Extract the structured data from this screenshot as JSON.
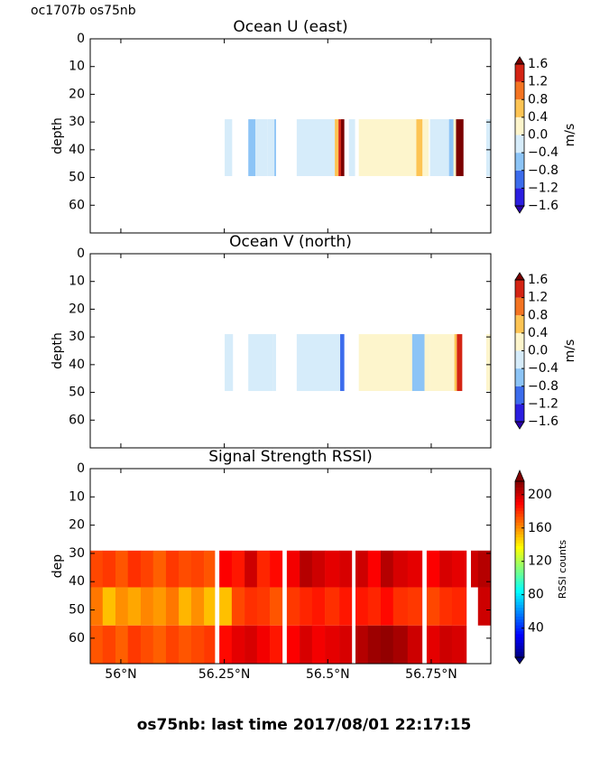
{
  "header": "oc1707b os75nb",
  "footer": "os75nb: last time 2017/08/01 22:17:15",
  "chart_data": [
    {
      "type": "contourf",
      "title": "Ocean U (east)",
      "ylabel": "depth",
      "colorbar_label": "m/s",
      "xlim": [
        55.926,
        56.894
      ],
      "ylim": [
        70,
        0
      ],
      "yticks": [
        0,
        10,
        20,
        30,
        40,
        50,
        60
      ],
      "xticks": [
        {
          "value": 56,
          "label": "56°N"
        },
        {
          "value": 56.25,
          "label": "56.25°N"
        },
        {
          "value": 56.5,
          "label": "56.5°N"
        },
        {
          "value": 56.75,
          "label": "56.75°N"
        }
      ],
      "show_xtick_labels": false,
      "y_edges": [
        29,
        49.5
      ],
      "x0": [
        56.251,
        56.308,
        56.325,
        56.354,
        56.371,
        56.425,
        56.517,
        56.526,
        56.532,
        56.551,
        56.575,
        56.714,
        56.729,
        56.747,
        56.793,
        56.804,
        56.81,
        56.883
      ],
      "x1": [
        56.269,
        56.325,
        56.354,
        56.371,
        56.375,
        56.517,
        56.526,
        56.532,
        56.54,
        56.566,
        56.714,
        56.729,
        56.744,
        56.793,
        56.804,
        56.81,
        56.828,
        56.894
      ],
      "values": [
        -0.2,
        -0.6,
        -0.2,
        -0.2,
        -0.6,
        -0.2,
        0.6,
        1.4,
        1.7,
        -0.2,
        0.2,
        0.5,
        0.2,
        -0.2,
        -0.6,
        0.2,
        1.7,
        -0.2
      ],
      "cticks": [
        {
          "value": -1.6,
          "label": "−1.6"
        },
        {
          "value": -1.2,
          "label": "−1.2"
        },
        {
          "value": -0.8,
          "label": "−0.8"
        },
        {
          "value": -0.4,
          "label": "−0.4"
        },
        {
          "value": 0,
          "label": "0.0"
        },
        0.4,
        0.8,
        1.2,
        1.6
      ],
      "colors": [
        "#2b1ee0",
        "#3c6cec",
        "#8cc4f6",
        "#d6ecfa",
        "#fdf5cc",
        "#fdc454",
        "#f47422",
        "#d42414"
      ],
      "under_color": "#2a00a8",
      "over_color": "#7a0000"
    },
    {
      "type": "contourf",
      "title": "Ocean V (north)",
      "ylabel": "depth",
      "colorbar_label": "m/s",
      "xlim": [
        55.926,
        56.894
      ],
      "ylim": [
        70,
        0
      ],
      "yticks": [
        0,
        10,
        20,
        30,
        40,
        50,
        60
      ],
      "xticks": [
        {
          "value": 56,
          "label": "56°N"
        },
        {
          "value": 56.25,
          "label": "56.25°N"
        },
        {
          "value": 56.5,
          "label": "56.5°N"
        },
        {
          "value": 56.75,
          "label": "56.75°N"
        }
      ],
      "show_xtick_labels": false,
      "y_edges": [
        29,
        49.5
      ],
      "x0": [
        56.251,
        56.308,
        56.367,
        56.425,
        56.53,
        56.575,
        56.704,
        56.734,
        56.747,
        56.806,
        56.812,
        56.883
      ],
      "x1": [
        56.271,
        56.367,
        56.375,
        56.53,
        56.54,
        56.704,
        56.734,
        56.747,
        56.806,
        56.812,
        56.825,
        56.894
      ],
      "values": [
        -0.2,
        -0.2,
        -0.2,
        -0.2,
        -0.9,
        0.2,
        -0.5,
        0.2,
        0.2,
        0.6,
        1.4,
        0.2
      ],
      "cticks": [
        {
          "value": -1.6,
          "label": "−1.6"
        },
        {
          "value": -1.2,
          "label": "−1.2"
        },
        {
          "value": -0.8,
          "label": "−0.8"
        },
        {
          "value": -0.4,
          "label": "−0.4"
        },
        {
          "value": 0,
          "label": "0.0"
        },
        0.4,
        0.8,
        1.2,
        1.6
      ],
      "colors": [
        "#2b1ee0",
        "#3c6cec",
        "#8cc4f6",
        "#d6ecfa",
        "#fdf5cc",
        "#fdc454",
        "#f47422",
        "#d42414"
      ],
      "under_color": "#2a00a8",
      "over_color": "#7a0000"
    },
    {
      "type": "heatmap",
      "title": "Signal Strength RSSI)",
      "ylabel": "dep",
      "colorbar_label": "RSSI counts",
      "xlim": [
        55.926,
        56.894
      ],
      "ylim": [
        69,
        0
      ],
      "yticks": [
        0,
        10,
        20,
        30,
        40,
        50,
        60
      ],
      "xticks": [
        {
          "value": 56,
          "label": "56°N"
        },
        {
          "value": 56.25,
          "label": "56.25°N"
        },
        {
          "value": 56.5,
          "label": "56.5°N"
        },
        {
          "value": 56.75,
          "label": "56.75°N"
        }
      ],
      "show_xtick_labels": true,
      "colormap": "jet",
      "clim": [
        5,
        216
      ],
      "cticks": [
        40,
        80,
        120,
        160,
        200
      ],
      "y_edges": [
        29,
        42,
        55.5,
        69
      ],
      "x_edges": [
        55.926,
        55.956,
        55.987,
        56.017,
        56.048,
        56.078,
        56.109,
        56.14,
        56.17,
        56.201,
        56.227,
        56.238,
        56.268,
        56.299,
        56.329,
        56.36,
        56.39,
        56.401,
        56.432,
        56.462,
        56.493,
        56.528,
        56.558,
        56.567,
        56.597,
        56.628,
        56.658,
        56.693,
        56.728,
        56.739,
        56.77,
        56.8,
        56.835,
        56.846,
        56.863,
        56.894
      ],
      "values": [
        [
          175,
          178,
          172,
          180,
          176,
          170,
          178,
          174,
          176,
          172,
          null,
          190,
          185,
          200,
          182,
          188,
          null,
          192,
          205,
          200,
          195,
          198,
          null,
          200,
          190,
          205,
          198,
          195,
          null,
          190,
          198,
          195,
          null,
          200,
          205
        ],
        [
          165,
          150,
          160,
          155,
          162,
          158,
          165,
          152,
          160,
          150,
          null,
          150,
          175,
          180,
          178,
          172,
          null,
          178,
          182,
          185,
          180,
          185,
          null,
          185,
          182,
          188,
          180,
          178,
          null,
          175,
          180,
          182,
          null,
          null,
          200
        ],
        [
          172,
          176,
          170,
          178,
          174,
          170,
          176,
          172,
          175,
          178,
          null,
          188,
          195,
          198,
          192,
          185,
          null,
          190,
          198,
          192,
          195,
          198,
          null,
          205,
          210,
          212,
          208,
          200,
          null,
          195,
          200,
          198,
          null,
          null,
          null
        ]
      ]
    }
  ]
}
